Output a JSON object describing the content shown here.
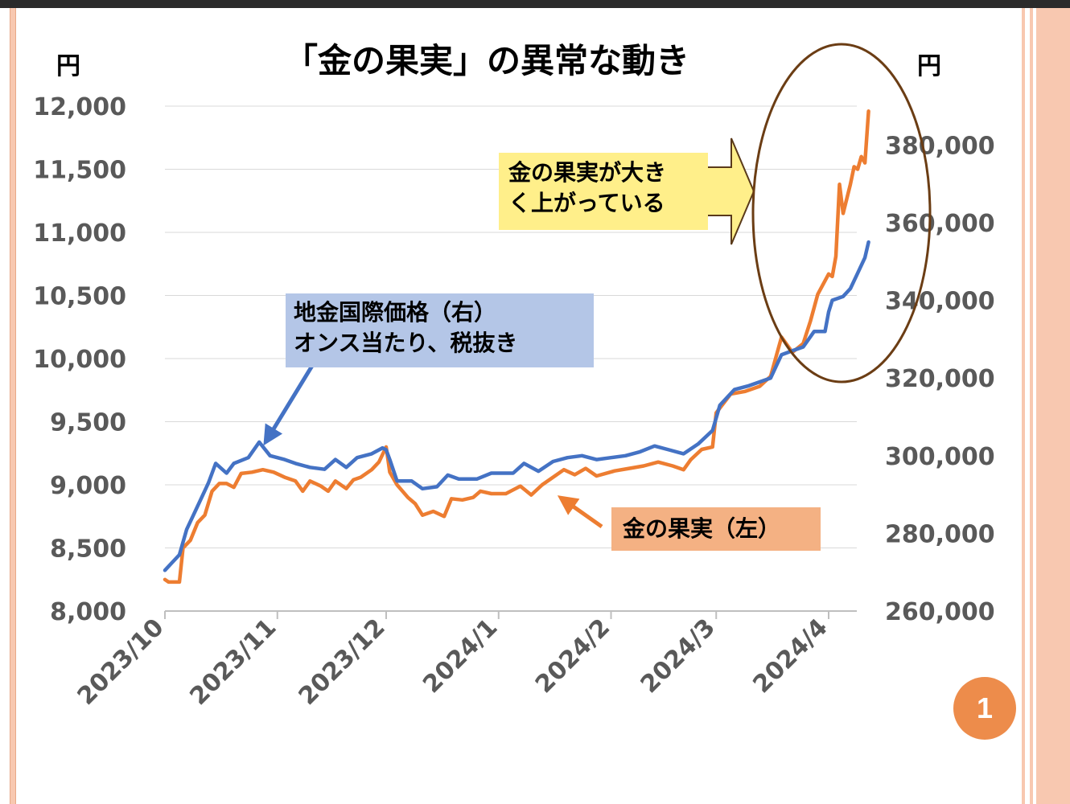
{
  "slide": {
    "title": "「金の果実」の異常な動き",
    "page_number": "1",
    "colors": {
      "topbar": "#2b2b2b",
      "border": "#f8c8b0",
      "badge": "#ed8c4b"
    }
  },
  "callouts": {
    "spot_price": {
      "line1": "地金国際価格（右）",
      "line2": "オンス当たり、税抜き",
      "color": "#b4c6e7"
    },
    "fruit": {
      "text": "金の果実（左）",
      "color": "#f4b183"
    },
    "rising": {
      "line1": "金の果実が大き",
      "line2": "く上がっている",
      "color": "#ffef8a"
    }
  },
  "chart_data": {
    "type": "line",
    "title": "「金の果実」の異常な動き",
    "y_left_unit": "円",
    "y_right_unit": "円",
    "y_left_range": [
      8000,
      12000
    ],
    "y_left_ticks": [
      "8,000",
      "8,500",
      "9,000",
      "9,500",
      "10,000",
      "10,500",
      "11,000",
      "11,500",
      "12,000"
    ],
    "y_right_range": [
      260000,
      390000
    ],
    "y_right_ticks": [
      "260,000",
      "280,000",
      "300,000",
      "320,000",
      "340,000",
      "360,000",
      "380,000"
    ],
    "x_tick_labels": [
      "2023/10",
      "2023/11",
      "2023/12",
      "2024/1",
      "2024/2",
      "2024/3",
      "2024/4"
    ],
    "grid": true,
    "series": [
      {
        "name": "金の果実（左）",
        "axis": "left",
        "color": "#ed7d31",
        "points": [
          [
            "2023-10-01",
            8250
          ],
          [
            "2023-10-02",
            8230
          ],
          [
            "2023-10-05",
            8230
          ],
          [
            "2023-10-06",
            8500
          ],
          [
            "2023-10-08",
            8560
          ],
          [
            "2023-10-10",
            8700
          ],
          [
            "2023-10-12",
            8760
          ],
          [
            "2023-10-14",
            8950
          ],
          [
            "2023-10-16",
            9010
          ],
          [
            "2023-10-18",
            9010
          ],
          [
            "2023-10-20",
            8980
          ],
          [
            "2023-10-22",
            9090
          ],
          [
            "2023-10-25",
            9100
          ],
          [
            "2023-10-28",
            9120
          ],
          [
            "2023-10-31",
            9100
          ],
          [
            "2023-11-03",
            9060
          ],
          [
            "2023-11-06",
            9030
          ],
          [
            "2023-11-08",
            8950
          ],
          [
            "2023-11-10",
            9030
          ],
          [
            "2023-11-13",
            8990
          ],
          [
            "2023-11-15",
            8950
          ],
          [
            "2023-11-17",
            9030
          ],
          [
            "2023-11-20",
            8970
          ],
          [
            "2023-11-22",
            9040
          ],
          [
            "2023-11-24",
            9060
          ],
          [
            "2023-11-27",
            9120
          ],
          [
            "2023-11-29",
            9180
          ],
          [
            "2023-12-01",
            9300
          ],
          [
            "2023-12-02",
            9100
          ],
          [
            "2023-12-04",
            9000
          ],
          [
            "2023-12-07",
            8900
          ],
          [
            "2023-12-09",
            8850
          ],
          [
            "2023-12-11",
            8760
          ],
          [
            "2023-12-14",
            8790
          ],
          [
            "2023-12-17",
            8750
          ],
          [
            "2023-12-19",
            8890
          ],
          [
            "2023-12-22",
            8880
          ],
          [
            "2023-12-25",
            8900
          ],
          [
            "2023-12-27",
            8950
          ],
          [
            "2023-12-30",
            8930
          ],
          [
            "2024-01-03",
            8930
          ],
          [
            "2024-01-07",
            8990
          ],
          [
            "2024-01-10",
            8920
          ],
          [
            "2024-01-13",
            9000
          ],
          [
            "2024-01-16",
            9060
          ],
          [
            "2024-01-19",
            9120
          ],
          [
            "2024-01-22",
            9080
          ],
          [
            "2024-01-25",
            9130
          ],
          [
            "2024-01-28",
            9070
          ],
          [
            "2024-02-02",
            9110
          ],
          [
            "2024-02-06",
            9130
          ],
          [
            "2024-02-10",
            9150
          ],
          [
            "2024-02-14",
            9180
          ],
          [
            "2024-02-18",
            9150
          ],
          [
            "2024-02-21",
            9120
          ],
          [
            "2024-02-23",
            9200
          ],
          [
            "2024-02-26",
            9280
          ],
          [
            "2024-02-29",
            9300
          ],
          [
            "2024-03-01",
            9570
          ],
          [
            "2024-03-05",
            9720
          ],
          [
            "2024-03-09",
            9740
          ],
          [
            "2024-03-13",
            9780
          ],
          [
            "2024-03-16",
            9860
          ],
          [
            "2024-03-19",
            10170
          ],
          [
            "2024-03-22",
            10050
          ],
          [
            "2024-03-25",
            10120
          ],
          [
            "2024-03-27",
            10300
          ],
          [
            "2024-03-29",
            10510
          ],
          [
            "2024-04-01",
            10670
          ],
          [
            "2024-04-02",
            10650
          ],
          [
            "2024-04-03",
            10810
          ],
          [
            "2024-04-04",
            11380
          ],
          [
            "2024-04-05",
            11150
          ],
          [
            "2024-04-07",
            11380
          ],
          [
            "2024-04-08",
            11520
          ],
          [
            "2024-04-09",
            11500
          ],
          [
            "2024-04-10",
            11600
          ],
          [
            "2024-04-11",
            11550
          ],
          [
            "2024-04-12",
            11960
          ]
        ]
      },
      {
        "name": "地金国際価格（右）",
        "axis": "right",
        "color": "#4472c4",
        "points": [
          [
            "2023-10-01",
            270500
          ],
          [
            "2023-10-03",
            272500
          ],
          [
            "2023-10-05",
            274500
          ],
          [
            "2023-10-07",
            281000
          ],
          [
            "2023-10-09",
            285000
          ],
          [
            "2023-10-11",
            289000
          ],
          [
            "2023-10-13",
            293000
          ],
          [
            "2023-10-15",
            298000
          ],
          [
            "2023-10-18",
            295500
          ],
          [
            "2023-10-20",
            298000
          ],
          [
            "2023-10-24",
            299500
          ],
          [
            "2023-10-27",
            303500
          ],
          [
            "2023-10-30",
            300000
          ],
          [
            "2023-11-03",
            299000
          ],
          [
            "2023-11-06",
            298000
          ],
          [
            "2023-11-10",
            297000
          ],
          [
            "2023-11-14",
            296500
          ],
          [
            "2023-11-17",
            299000
          ],
          [
            "2023-11-20",
            297000
          ],
          [
            "2023-11-23",
            299500
          ],
          [
            "2023-11-27",
            300500
          ],
          [
            "2023-11-30",
            302000
          ],
          [
            "2023-12-01",
            301500
          ],
          [
            "2023-12-02",
            299000
          ],
          [
            "2023-12-04",
            293500
          ],
          [
            "2023-12-08",
            293500
          ],
          [
            "2023-12-11",
            291500
          ],
          [
            "2023-12-15",
            292000
          ],
          [
            "2023-12-18",
            295000
          ],
          [
            "2023-12-21",
            294000
          ],
          [
            "2023-12-26",
            294000
          ],
          [
            "2023-12-30",
            295500
          ],
          [
            "2024-01-05",
            295500
          ],
          [
            "2024-01-08",
            298000
          ],
          [
            "2024-01-12",
            296000
          ],
          [
            "2024-01-16",
            298500
          ],
          [
            "2024-01-20",
            299500
          ],
          [
            "2024-01-24",
            300000
          ],
          [
            "2024-01-28",
            299000
          ],
          [
            "2024-02-01",
            299500
          ],
          [
            "2024-02-05",
            300000
          ],
          [
            "2024-02-09",
            301000
          ],
          [
            "2024-02-13",
            302500
          ],
          [
            "2024-02-17",
            301500
          ],
          [
            "2024-02-21",
            300500
          ],
          [
            "2024-02-25",
            303000
          ],
          [
            "2024-02-29",
            306500
          ],
          [
            "2024-03-02",
            313000
          ],
          [
            "2024-03-06",
            317000
          ],
          [
            "2024-03-10",
            318000
          ],
          [
            "2024-03-13",
            319000
          ],
          [
            "2024-03-16",
            320000
          ],
          [
            "2024-03-19",
            326000
          ],
          [
            "2024-03-22",
            327000
          ],
          [
            "2024-03-25",
            328000
          ],
          [
            "2024-03-28",
            332000
          ],
          [
            "2024-03-31",
            332000
          ],
          [
            "2024-04-01",
            337000
          ],
          [
            "2024-04-02",
            340000
          ],
          [
            "2024-04-05",
            341000
          ],
          [
            "2024-04-07",
            343000
          ],
          [
            "2024-04-09",
            347000
          ],
          [
            "2024-04-11",
            351000
          ],
          [
            "2024-04-12",
            355000
          ]
        ]
      }
    ]
  }
}
